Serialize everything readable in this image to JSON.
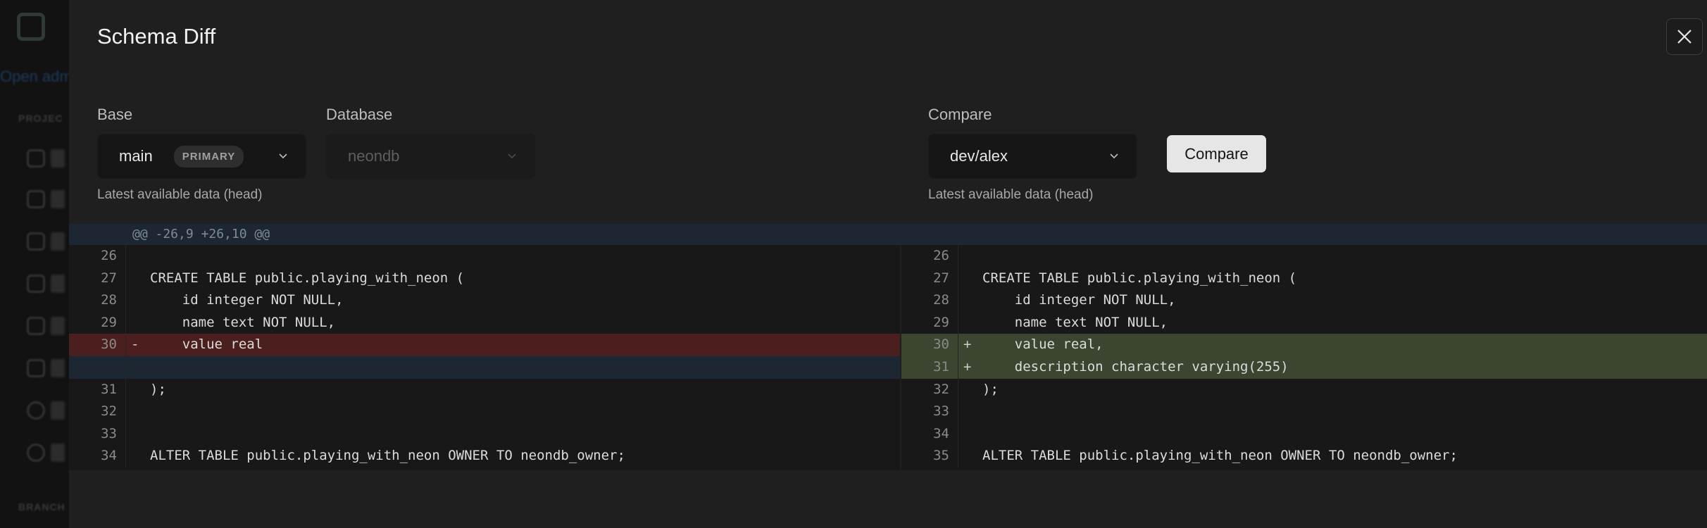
{
  "sidebar": {
    "link": "Open adm",
    "section_project": "PROJEC",
    "section_branches": "BRANCH"
  },
  "dialog": {
    "title": "Schema Diff",
    "close_icon": "close-icon"
  },
  "base": {
    "label": "Base",
    "branch": "main",
    "badge": "PRIMARY",
    "hint": "Latest available data (head)"
  },
  "database": {
    "label": "Database",
    "value": "neondb"
  },
  "compare": {
    "label": "Compare",
    "branch": "dev/alex",
    "hint": "Latest available data (head)",
    "button": "Compare"
  },
  "diff": {
    "hunk": "@@ -26,9 +26,10 @@",
    "colors": {
      "deleted": "#4c1f1f",
      "added": "#3b4530",
      "hunk": "#1c2733"
    },
    "left": [
      {
        "n": "26",
        "m": "",
        "code": "",
        "type": "ctx"
      },
      {
        "n": "27",
        "m": "",
        "code": "CREATE TABLE public.playing_with_neon (",
        "type": "ctx"
      },
      {
        "n": "28",
        "m": "",
        "code": "    id integer NOT NULL,",
        "type": "ctx"
      },
      {
        "n": "29",
        "m": "",
        "code": "    name text NOT NULL,",
        "type": "ctx"
      },
      {
        "n": "30",
        "m": "-",
        "code": "    value real",
        "type": "del"
      },
      {
        "n": "",
        "m": "",
        "code": "",
        "type": "fill"
      },
      {
        "n": "31",
        "m": "",
        "code": ");",
        "type": "ctx"
      },
      {
        "n": "32",
        "m": "",
        "code": "",
        "type": "ctx"
      },
      {
        "n": "33",
        "m": "",
        "code": "",
        "type": "ctx"
      },
      {
        "n": "34",
        "m": "",
        "code": "ALTER TABLE public.playing_with_neon OWNER TO neondb_owner;",
        "type": "ctx"
      }
    ],
    "right": [
      {
        "n": "26",
        "m": "",
        "code": "",
        "type": "ctx"
      },
      {
        "n": "27",
        "m": "",
        "code": "CREATE TABLE public.playing_with_neon (",
        "type": "ctx"
      },
      {
        "n": "28",
        "m": "",
        "code": "    id integer NOT NULL,",
        "type": "ctx"
      },
      {
        "n": "29",
        "m": "",
        "code": "    name text NOT NULL,",
        "type": "ctx"
      },
      {
        "n": "30",
        "m": "+",
        "code": "    value real,",
        "type": "add"
      },
      {
        "n": "31",
        "m": "+",
        "code": "    description character varying(255)",
        "type": "add"
      },
      {
        "n": "32",
        "m": "",
        "code": ");",
        "type": "ctx"
      },
      {
        "n": "33",
        "m": "",
        "code": "",
        "type": "ctx"
      },
      {
        "n": "34",
        "m": "",
        "code": "",
        "type": "ctx"
      },
      {
        "n": "35",
        "m": "",
        "code": "ALTER TABLE public.playing_with_neon OWNER TO neondb_owner;",
        "type": "ctx"
      }
    ]
  }
}
